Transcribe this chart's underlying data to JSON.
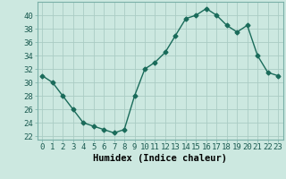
{
  "x": [
    0,
    1,
    2,
    3,
    4,
    5,
    6,
    7,
    8,
    9,
    10,
    11,
    12,
    13,
    14,
    15,
    16,
    17,
    18,
    19,
    20,
    21,
    22,
    23
  ],
  "y": [
    31,
    30,
    28,
    26,
    24,
    23.5,
    23,
    22.5,
    23,
    28,
    32,
    33,
    34.5,
    37,
    39.5,
    40,
    41,
    40,
    38.5,
    37.5,
    38.5,
    34,
    31.5,
    31
  ],
  "line_color": "#1a6b5a",
  "marker": "D",
  "marker_size": 2.5,
  "bg_color": "#cce8e0",
  "grid_color": "#aaccC4",
  "xlabel": "Humidex (Indice chaleur)",
  "xlim": [
    -0.5,
    23.5
  ],
  "ylim": [
    21.5,
    42
  ],
  "yticks": [
    22,
    24,
    26,
    28,
    30,
    32,
    34,
    36,
    38,
    40
  ],
  "xticks": [
    0,
    1,
    2,
    3,
    4,
    5,
    6,
    7,
    8,
    9,
    10,
    11,
    12,
    13,
    14,
    15,
    16,
    17,
    18,
    19,
    20,
    21,
    22,
    23
  ],
  "xlabel_fontsize": 7.5,
  "tick_fontsize": 6.5
}
